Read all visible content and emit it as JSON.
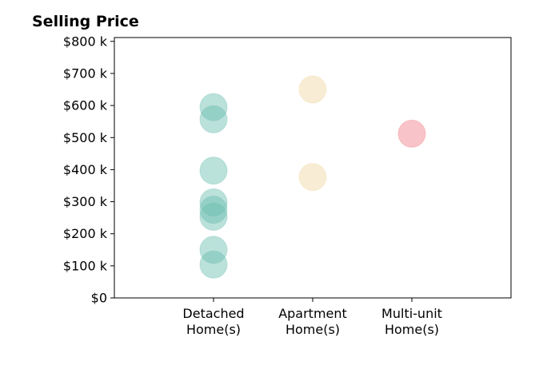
{
  "chart_data": {
    "type": "scatter",
    "title": "Selling Price",
    "categories": [
      [
        "Detached",
        "Home(s)"
      ],
      [
        "Apartment",
        "Home(s)"
      ],
      [
        "Multi-unit",
        "Home(s)"
      ]
    ],
    "yticks": [
      {
        "value": 0,
        "label": "$0"
      },
      {
        "value": 100,
        "label": "$100 k"
      },
      {
        "value": 200,
        "label": "$200 k"
      },
      {
        "value": 300,
        "label": "$300 k"
      },
      {
        "value": 400,
        "label": "$400 k"
      },
      {
        "value": 500,
        "label": "$500 k"
      },
      {
        "value": 600,
        "label": "$600 k"
      },
      {
        "value": 700,
        "label": "$700 k"
      },
      {
        "value": 800,
        "label": "$800 k"
      }
    ],
    "ylim": [
      0,
      812
    ],
    "xlim": [
      -1,
      3
    ],
    "grid": false,
    "series": [
      {
        "category": 0,
        "color": "#69bdb0",
        "values": [
          595,
          557,
          397,
          298,
          275,
          253,
          150,
          104
        ]
      },
      {
        "category": 1,
        "color": "#f0d8a0",
        "values": [
          650,
          377
        ]
      },
      {
        "category": 2,
        "color": "#f07c88",
        "values": [
          512
        ]
      }
    ]
  }
}
